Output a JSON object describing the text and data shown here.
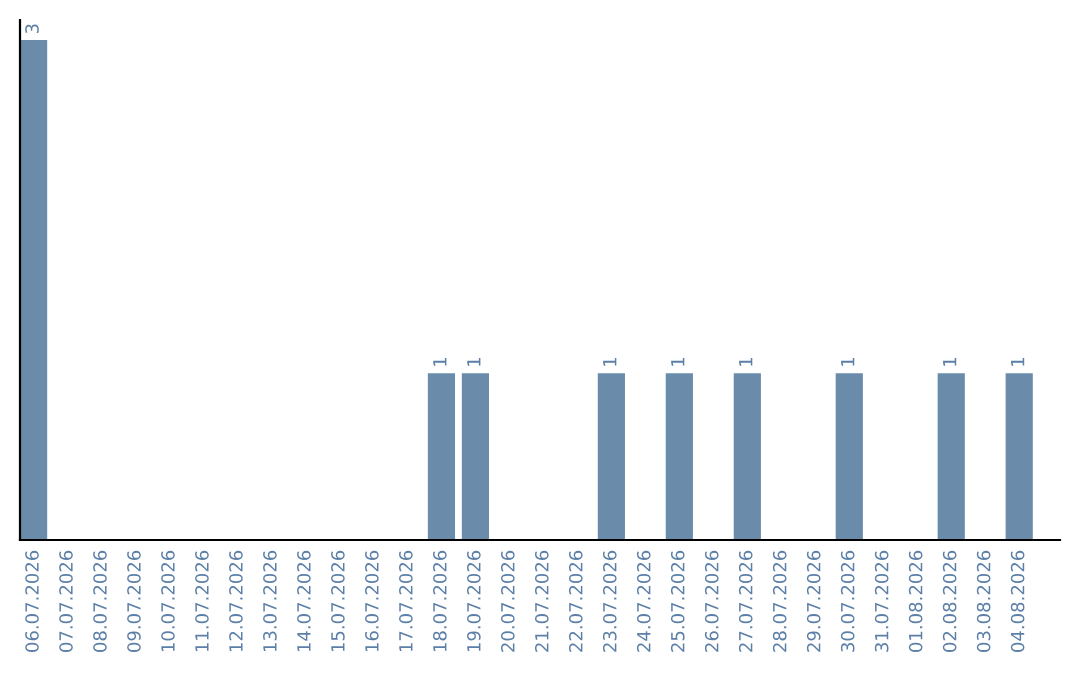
{
  "chart_data": {
    "type": "bar",
    "categories": [
      "06.07.2026",
      "07.07.2026",
      "08.07.2026",
      "09.07.2026",
      "10.07.2026",
      "11.07.2026",
      "12.07.2026",
      "13.07.2026",
      "14.07.2026",
      "15.07.2026",
      "16.07.2026",
      "17.07.2026",
      "18.07.2026",
      "19.07.2026",
      "20.07.2026",
      "21.07.2026",
      "22.07.2026",
      "23.07.2026",
      "24.07.2026",
      "25.07.2026",
      "26.07.2026",
      "27.07.2026",
      "28.07.2026",
      "29.07.2026",
      "30.07.2026",
      "31.07.2026",
      "01.08.2026",
      "02.08.2026",
      "03.08.2026",
      "04.08.2026"
    ],
    "values": [
      3,
      0,
      0,
      0,
      0,
      0,
      0,
      0,
      0,
      0,
      0,
      0,
      1,
      1,
      0,
      0,
      0,
      1,
      0,
      1,
      0,
      1,
      0,
      0,
      1,
      0,
      0,
      1,
      0,
      1
    ],
    "value_labels": [
      "3",
      null,
      null,
      null,
      null,
      null,
      null,
      null,
      null,
      null,
      null,
      null,
      "1",
      "1",
      null,
      null,
      null,
      "1",
      null,
      "1",
      null,
      "1",
      null,
      null,
      "1",
      null,
      null,
      "1",
      null,
      "1"
    ],
    "color": "#6a8caa",
    "grid": false,
    "legend": false,
    "tick_labels": "x"
  }
}
